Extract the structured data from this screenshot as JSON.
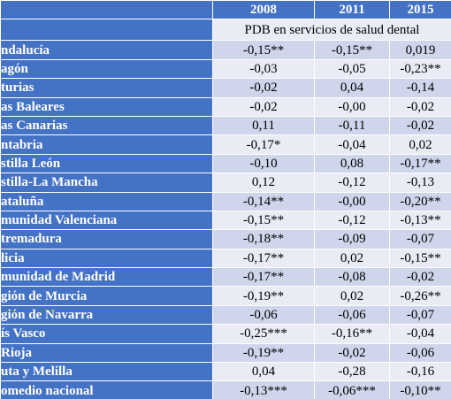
{
  "table": {
    "columns": [
      "2008",
      "2011",
      "2015"
    ],
    "subtitle": "PDB en servicios de salud dental",
    "rows": [
      {
        "label": "ndalucía",
        "values": [
          "-0,15**",
          "-0,15**",
          "0,019"
        ]
      },
      {
        "label": "agón",
        "values": [
          "-0,03",
          "-0,05",
          "-0,23**"
        ]
      },
      {
        "label": "turias",
        "values": [
          "-0,02",
          "0,04",
          "-0,14"
        ]
      },
      {
        "label": "as Baleares",
        "values": [
          "-0,02",
          "-0,00",
          "-0,02"
        ]
      },
      {
        "label": "as Canarias",
        "values": [
          "0,11",
          "-0,11",
          "-0,02"
        ]
      },
      {
        "label": "ntabria",
        "values": [
          "-0,17*",
          "-0,04",
          "0,02"
        ]
      },
      {
        "label": "stilla León",
        "values": [
          "-0,10",
          "0,08",
          "-0,17**"
        ]
      },
      {
        "label": "stilla-La Mancha",
        "values": [
          "0,12",
          "-0,12",
          "-0,13"
        ]
      },
      {
        "label": "ataluña",
        "values": [
          "-0,14**",
          "-0,00",
          "-0,20**"
        ]
      },
      {
        "label": "munidad Valenciana",
        "values": [
          "-0,15**",
          "-0,12",
          "-0,13**"
        ]
      },
      {
        "label": "tremadura",
        "values": [
          "-0,18**",
          "-0,09",
          "-0,07"
        ]
      },
      {
        "label": "licia",
        "values": [
          "-0,17**",
          "0,02",
          "-0,15**"
        ]
      },
      {
        "label": "munidad de Madrid",
        "values": [
          "-0,17**",
          "-0,08",
          "-0,02"
        ]
      },
      {
        "label": "gión de Murcia",
        "values": [
          "-0,19**",
          "0,02",
          "-0,26**"
        ]
      },
      {
        "label": "gión de Navarra",
        "values": [
          "-0,06",
          "-0,06",
          "-0,07"
        ]
      },
      {
        "label": "ís Vasco",
        "values": [
          "-0,25***",
          "-0,16**",
          "-0,04"
        ]
      },
      {
        "label": "Rioja",
        "values": [
          "-0,19**",
          "-0,02",
          "-0,06"
        ]
      },
      {
        "label": "uta y Melilla",
        "values": [
          "0,04",
          "-0,28",
          "-0,16"
        ]
      },
      {
        "label": "omedio nacional",
        "values": [
          "-0,13***",
          "-0,06***",
          "-0,10**"
        ]
      }
    ]
  }
}
